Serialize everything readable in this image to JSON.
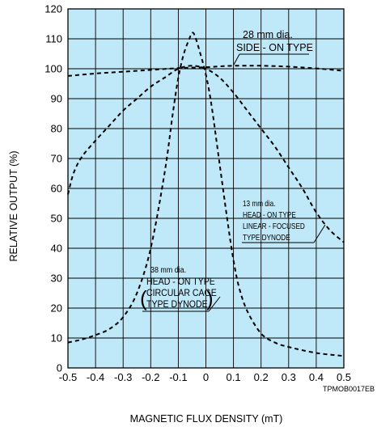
{
  "chart_data": {
    "type": "line",
    "xlabel": "MAGNETIC FLUX DENSITY (mT)",
    "ylabel": "RELATIVE OUTPUT (%)",
    "xlim": [
      -0.5,
      0.5
    ],
    "ylim": [
      0,
      120
    ],
    "x_ticks": [
      "-0.5",
      "-0.4",
      "-0.3",
      "-0.2",
      "-0.1",
      "0",
      "0.1",
      "0.2",
      "0.3",
      "0.4",
      "0.5"
    ],
    "y_ticks": [
      "0",
      "10",
      "20",
      "30",
      "40",
      "50",
      "60",
      "70",
      "80",
      "90",
      "100",
      "110",
      "120"
    ],
    "grid": true,
    "plot_background": "#bfe8f8",
    "line_color": "#000000",
    "line_style": "dashed",
    "series": [
      {
        "name": "28 mm dia. SIDE - ON TYPE",
        "points": [
          [
            -0.5,
            97.6
          ],
          [
            -0.4,
            98.4
          ],
          [
            -0.3,
            99.0
          ],
          [
            -0.2,
            99.6
          ],
          [
            -0.1,
            100.2
          ],
          [
            0.0,
            100.5
          ],
          [
            0.05,
            100.8
          ],
          [
            0.1,
            101.0
          ],
          [
            0.2,
            101.0
          ],
          [
            0.3,
            100.7
          ],
          [
            0.4,
            100.1
          ],
          [
            0.5,
            99.3
          ]
        ]
      },
      {
        "name": "13 mm dia. HEAD - ON TYPE LINEAR - FOCUSED TYPE DYNODE",
        "points": [
          [
            -0.5,
            58.0
          ],
          [
            -0.48,
            65.0
          ],
          [
            -0.45,
            70.5
          ],
          [
            -0.4,
            76.0
          ],
          [
            -0.35,
            81.0
          ],
          [
            -0.3,
            86.0
          ],
          [
            -0.25,
            90.0
          ],
          [
            -0.2,
            94.0
          ],
          [
            -0.15,
            97.0
          ],
          [
            -0.1,
            100.0
          ],
          [
            -0.05,
            101.0
          ],
          [
            0.0,
            100.0
          ],
          [
            0.05,
            97.0
          ],
          [
            0.1,
            92.0
          ],
          [
            0.15,
            86.0
          ],
          [
            0.2,
            80.0
          ],
          [
            0.25,
            74.0
          ],
          [
            0.3,
            67.0
          ],
          [
            0.35,
            60.0
          ],
          [
            0.4,
            52.0
          ],
          [
            0.45,
            46.0
          ],
          [
            0.5,
            42.0
          ]
        ]
      },
      {
        "name": "38 mm dia. HEAD - ON TYPE CIRCULAR CAGE TYPE DYNODE",
        "points": [
          [
            -0.5,
            8.5
          ],
          [
            -0.45,
            9.5
          ],
          [
            -0.4,
            11.0
          ],
          [
            -0.35,
            13.0
          ],
          [
            -0.3,
            17.0
          ],
          [
            -0.25,
            25.0
          ],
          [
            -0.2,
            40.0
          ],
          [
            -0.15,
            65.0
          ],
          [
            -0.12,
            85.0
          ],
          [
            -0.1,
            97.0
          ],
          [
            -0.08,
            105.0
          ],
          [
            -0.06,
            110.0
          ],
          [
            -0.05,
            112.0
          ],
          [
            -0.04,
            111.0
          ],
          [
            -0.02,
            105.0
          ],
          [
            0.0,
            98.0
          ],
          [
            0.02,
            88.0
          ],
          [
            0.05,
            68.0
          ],
          [
            0.08,
            48.0
          ],
          [
            0.1,
            36.0
          ],
          [
            0.12,
            27.0
          ],
          [
            0.15,
            19.0
          ],
          [
            0.2,
            11.5
          ],
          [
            0.25,
            8.5
          ],
          [
            0.3,
            7.0
          ],
          [
            0.4,
            5.0
          ],
          [
            0.5,
            4.0
          ]
        ]
      }
    ],
    "annotations": [
      {
        "lines": [
          "28 mm dia.",
          "SIDE - ON TYPE"
        ]
      },
      {
        "lines": [
          "13 mm dia.",
          "HEAD - ON TYPE",
          "LINEAR - FOCUSED",
          "TYPE DYNODE"
        ]
      },
      {
        "lines": [
          "38 mm dia.",
          "HEAD - ON TYPE",
          "CIRCULAR CAGE",
          "TYPE DYNODE"
        ]
      }
    ],
    "figure_code": "TPMOB0017EB"
  }
}
